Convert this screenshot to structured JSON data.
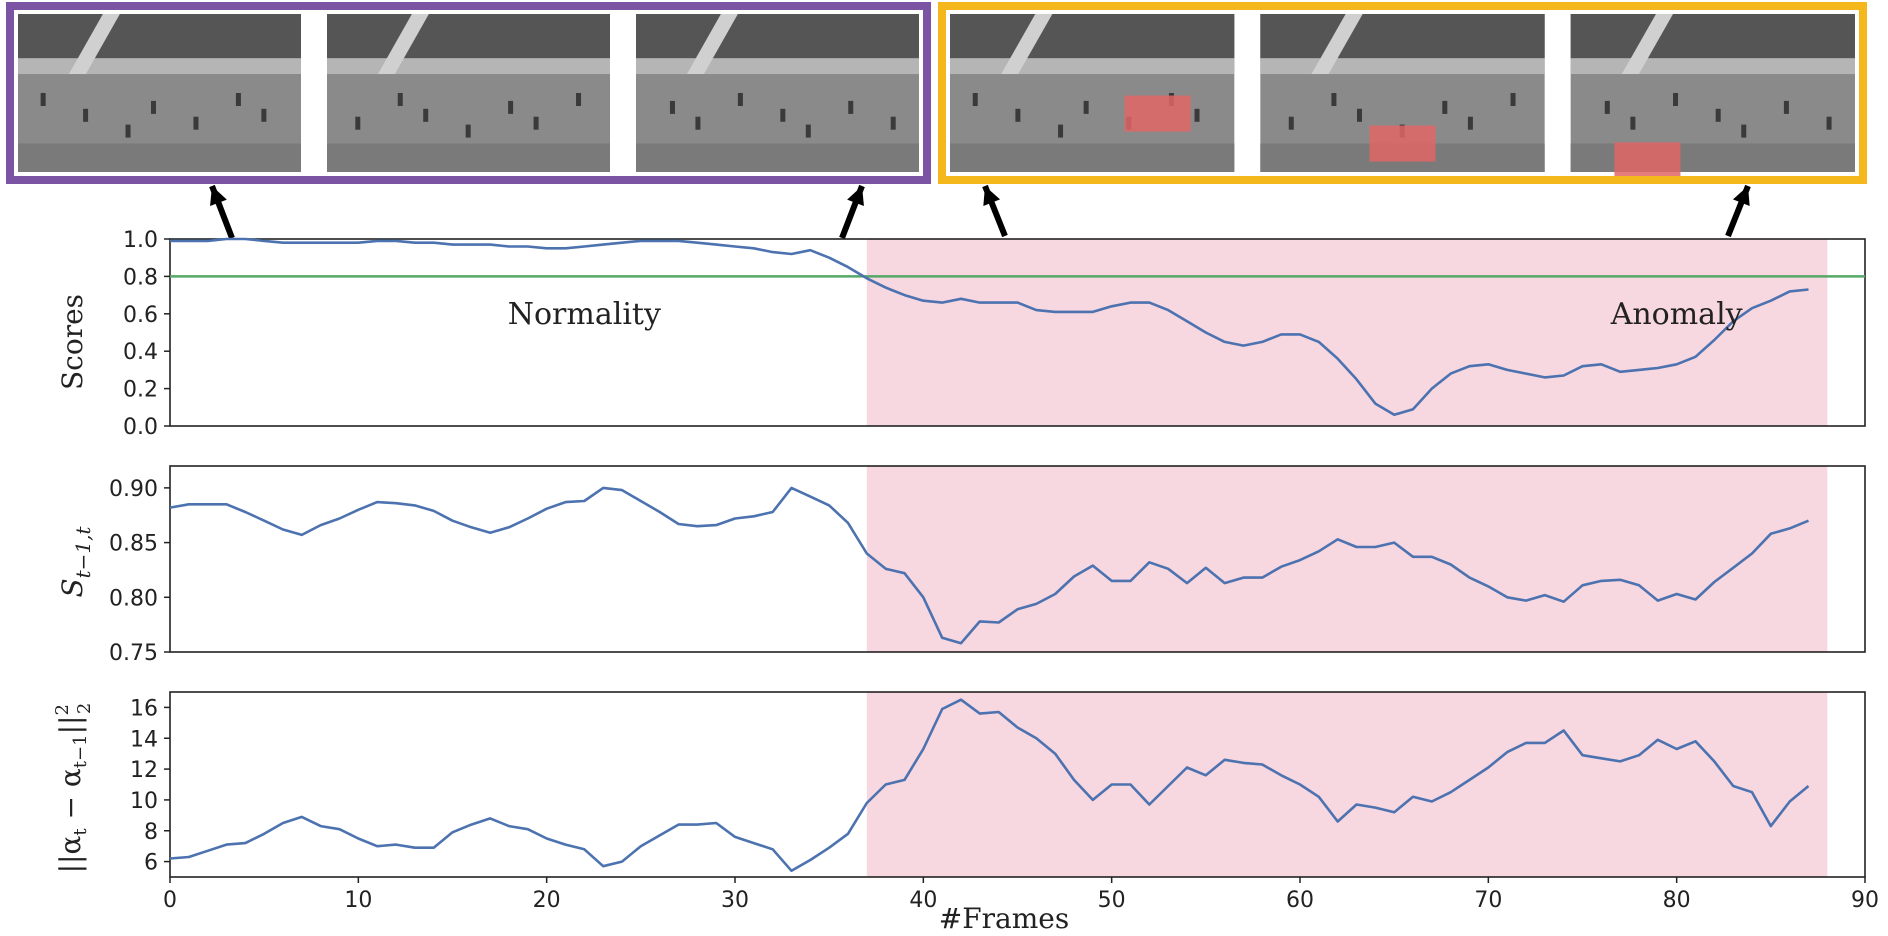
{
  "strips": [
    {
      "name": "normal",
      "border_color": "#7b55a3",
      "frames": 3
    },
    {
      "name": "anomaly",
      "border_color": "#f4b81c",
      "frames": 3
    }
  ],
  "colors": {
    "line": "#4c72b0",
    "threshold": "#55a868",
    "anomaly_region": "#f7d7e0",
    "frame_bg": "#8a8a8a",
    "frame_dark": "#3a3a3a",
    "vehicle_box": "#e06666"
  },
  "x_axis": {
    "label": "#Frames",
    "lim": [
      0,
      90
    ],
    "ticks": [
      0,
      10,
      20,
      30,
      40,
      50,
      60,
      70,
      80,
      90
    ],
    "anomaly_start": 37,
    "data_end": 88
  },
  "chart_data": [
    {
      "type": "line",
      "ylabel": "Scores",
      "ylim": [
        0,
        1
      ],
      "yticks": [
        "0.0",
        "0.2",
        "0.4",
        "0.6",
        "0.8",
        "1.0"
      ],
      "threshold": 0.8,
      "annotations": [
        {
          "text": "Normality",
          "x": 22,
          "y": 0.6
        },
        {
          "text": "Anomaly",
          "x": 80,
          "y": 0.6
        }
      ],
      "x": [
        0,
        1,
        2,
        3,
        4,
        5,
        6,
        7,
        8,
        9,
        10,
        11,
        12,
        13,
        14,
        15,
        16,
        17,
        18,
        19,
        20,
        21,
        22,
        23,
        24,
        25,
        26,
        27,
        28,
        29,
        30,
        31,
        32,
        33,
        34,
        35,
        36,
        37,
        38,
        39,
        40,
        41,
        42,
        43,
        44,
        45,
        46,
        47,
        48,
        49,
        50,
        51,
        52,
        53,
        54,
        55,
        56,
        57,
        58,
        59,
        60,
        61,
        62,
        63,
        64,
        65,
        66,
        67,
        68,
        69,
        70,
        71,
        72,
        73,
        74,
        75,
        76,
        77,
        78,
        79,
        80,
        81,
        82,
        83,
        84,
        85,
        86,
        87
      ],
      "values": [
        0.99,
        0.99,
        0.99,
        1.0,
        1.0,
        0.99,
        0.98,
        0.98,
        0.98,
        0.98,
        0.98,
        0.99,
        0.99,
        0.98,
        0.98,
        0.97,
        0.97,
        0.97,
        0.96,
        0.96,
        0.95,
        0.95,
        0.96,
        0.97,
        0.98,
        0.99,
        0.99,
        0.99,
        0.98,
        0.97,
        0.96,
        0.95,
        0.93,
        0.92,
        0.94,
        0.9,
        0.85,
        0.79,
        0.74,
        0.7,
        0.67,
        0.66,
        0.68,
        0.66,
        0.66,
        0.66,
        0.62,
        0.61,
        0.61,
        0.61,
        0.64,
        0.66,
        0.66,
        0.62,
        0.56,
        0.5,
        0.45,
        0.43,
        0.45,
        0.49,
        0.49,
        0.45,
        0.36,
        0.25,
        0.12,
        0.06,
        0.09,
        0.2,
        0.28,
        0.32,
        0.33,
        0.3,
        0.28,
        0.26,
        0.27,
        0.32,
        0.33,
        0.29,
        0.3,
        0.31,
        0.33,
        0.37,
        0.46,
        0.56,
        0.63,
        0.67,
        0.72,
        0.73
      ]
    },
    {
      "type": "line",
      "ylabel": "S_{t-1,t}",
      "ylim": [
        0.75,
        0.92
      ],
      "yticks": [
        "0.75",
        "0.80",
        "0.85",
        "0.90"
      ],
      "x": [
        0,
        1,
        2,
        3,
        4,
        5,
        6,
        7,
        8,
        9,
        10,
        11,
        12,
        13,
        14,
        15,
        16,
        17,
        18,
        19,
        20,
        21,
        22,
        23,
        24,
        25,
        26,
        27,
        28,
        29,
        30,
        31,
        32,
        33,
        34,
        35,
        36,
        37,
        38,
        39,
        40,
        41,
        42,
        43,
        44,
        45,
        46,
        47,
        48,
        49,
        50,
        51,
        52,
        53,
        54,
        55,
        56,
        57,
        58,
        59,
        60,
        61,
        62,
        63,
        64,
        65,
        66,
        67,
        68,
        69,
        70,
        71,
        72,
        73,
        74,
        75,
        76,
        77,
        78,
        79,
        80,
        81,
        82,
        83,
        84,
        85,
        86,
        87
      ],
      "values": [
        0.882,
        0.885,
        0.885,
        0.885,
        0.878,
        0.87,
        0.862,
        0.857,
        0.866,
        0.872,
        0.88,
        0.887,
        0.886,
        0.884,
        0.879,
        0.87,
        0.864,
        0.859,
        0.864,
        0.872,
        0.881,
        0.887,
        0.888,
        0.9,
        0.898,
        0.888,
        0.878,
        0.867,
        0.865,
        0.866,
        0.872,
        0.874,
        0.878,
        0.9,
        0.892,
        0.884,
        0.868,
        0.84,
        0.826,
        0.822,
        0.8,
        0.763,
        0.758,
        0.778,
        0.777,
        0.789,
        0.794,
        0.803,
        0.819,
        0.829,
        0.815,
        0.815,
        0.832,
        0.826,
        0.813,
        0.827,
        0.813,
        0.818,
        0.818,
        0.828,
        0.834,
        0.842,
        0.853,
        0.846,
        0.846,
        0.85,
        0.837,
        0.837,
        0.83,
        0.818,
        0.81,
        0.8,
        0.797,
        0.802,
        0.796,
        0.811,
        0.815,
        0.816,
        0.811,
        0.797,
        0.803,
        0.798,
        0.814,
        0.827,
        0.84,
        0.858,
        0.863,
        0.87
      ]
    },
    {
      "type": "line",
      "ylabel": "||α_t − α_{t−1}||_2^2",
      "ylim": [
        5,
        17
      ],
      "yticks": [
        "6",
        "8",
        "10",
        "12",
        "14",
        "16"
      ],
      "x": [
        0,
        1,
        2,
        3,
        4,
        5,
        6,
        7,
        8,
        9,
        10,
        11,
        12,
        13,
        14,
        15,
        16,
        17,
        18,
        19,
        20,
        21,
        22,
        23,
        24,
        25,
        26,
        27,
        28,
        29,
        30,
        31,
        32,
        33,
        34,
        35,
        36,
        37,
        38,
        39,
        40,
        41,
        42,
        43,
        44,
        45,
        46,
        47,
        48,
        49,
        50,
        51,
        52,
        53,
        54,
        55,
        56,
        57,
        58,
        59,
        60,
        61,
        62,
        63,
        64,
        65,
        66,
        67,
        68,
        69,
        70,
        71,
        72,
        73,
        74,
        75,
        76,
        77,
        78,
        79,
        80,
        81,
        82,
        83,
        84,
        85,
        86,
        87
      ],
      "values": [
        6.2,
        6.3,
        6.7,
        7.1,
        7.2,
        7.8,
        8.5,
        8.9,
        8.3,
        8.1,
        7.5,
        7.0,
        7.1,
        6.9,
        6.9,
        7.9,
        8.4,
        8.8,
        8.3,
        8.1,
        7.5,
        7.1,
        6.8,
        5.7,
        6.0,
        7.0,
        7.7,
        8.4,
        8.4,
        8.5,
        7.6,
        7.2,
        6.8,
        5.4,
        6.1,
        6.9,
        7.8,
        9.8,
        11.0,
        11.3,
        13.3,
        15.9,
        16.5,
        15.6,
        15.7,
        14.7,
        14.0,
        13.0,
        11.3,
        10.0,
        11.0,
        11.0,
        9.7,
        10.9,
        12.1,
        11.6,
        12.6,
        12.4,
        12.3,
        11.6,
        11.0,
        10.2,
        8.6,
        9.7,
        9.5,
        9.2,
        10.2,
        9.9,
        10.5,
        11.3,
        12.1,
        13.1,
        13.7,
        13.7,
        14.5,
        12.9,
        12.7,
        12.5,
        12.9,
        13.9,
        13.3,
        13.8,
        12.5,
        10.9,
        10.5,
        8.3,
        9.9,
        10.9
      ]
    }
  ]
}
